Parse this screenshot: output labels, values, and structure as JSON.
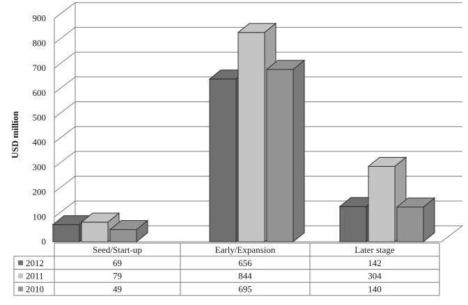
{
  "chart_data": {
    "type": "bar",
    "categories": [
      "Seed/Start-up",
      "Early/Expansion",
      "Later stage"
    ],
    "series": [
      {
        "name": "2012",
        "values": [
          69,
          656,
          142
        ],
        "color": "#6f6f6f"
      },
      {
        "name": "2011",
        "values": [
          79,
          844,
          304
        ],
        "color": "#c4c4c4"
      },
      {
        "name": "2010",
        "values": [
          49,
          695,
          140
        ],
        "color": "#939393"
      }
    ],
    "ylabel": "USD million",
    "ylim": [
      0,
      900
    ],
    "yticks": [
      0,
      100,
      200,
      300,
      400,
      500,
      600,
      700,
      800,
      900
    ],
    "grid": true,
    "legend": "data-table-left",
    "three_d": true
  }
}
